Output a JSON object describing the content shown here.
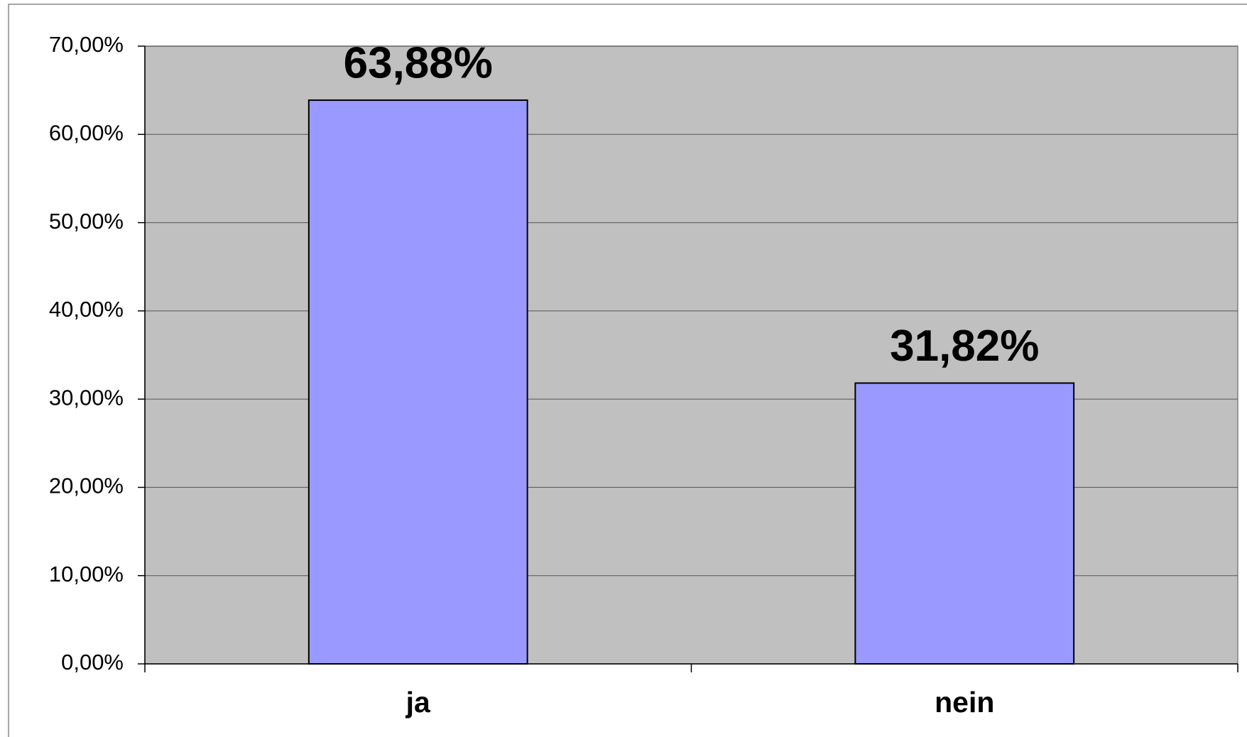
{
  "chart_data": {
    "type": "bar",
    "categories": [
      "ja",
      "nein"
    ],
    "values": [
      63.88,
      31.82
    ],
    "value_labels": [
      "63,88%",
      "31,82%"
    ],
    "color": "#9999ff",
    "ylim": [
      0,
      70
    ],
    "yticks": [
      {
        "value": 0,
        "label": "0,00%"
      },
      {
        "value": 10,
        "label": "10,00%"
      },
      {
        "value": 20,
        "label": "20,00%"
      },
      {
        "value": 30,
        "label": "30,00%"
      },
      {
        "value": 40,
        "label": "40,00%"
      },
      {
        "value": 50,
        "label": "50,00%"
      },
      {
        "value": 60,
        "label": "60,00%"
      },
      {
        "value": 70,
        "label": "70,00%"
      }
    ],
    "grid": true
  }
}
